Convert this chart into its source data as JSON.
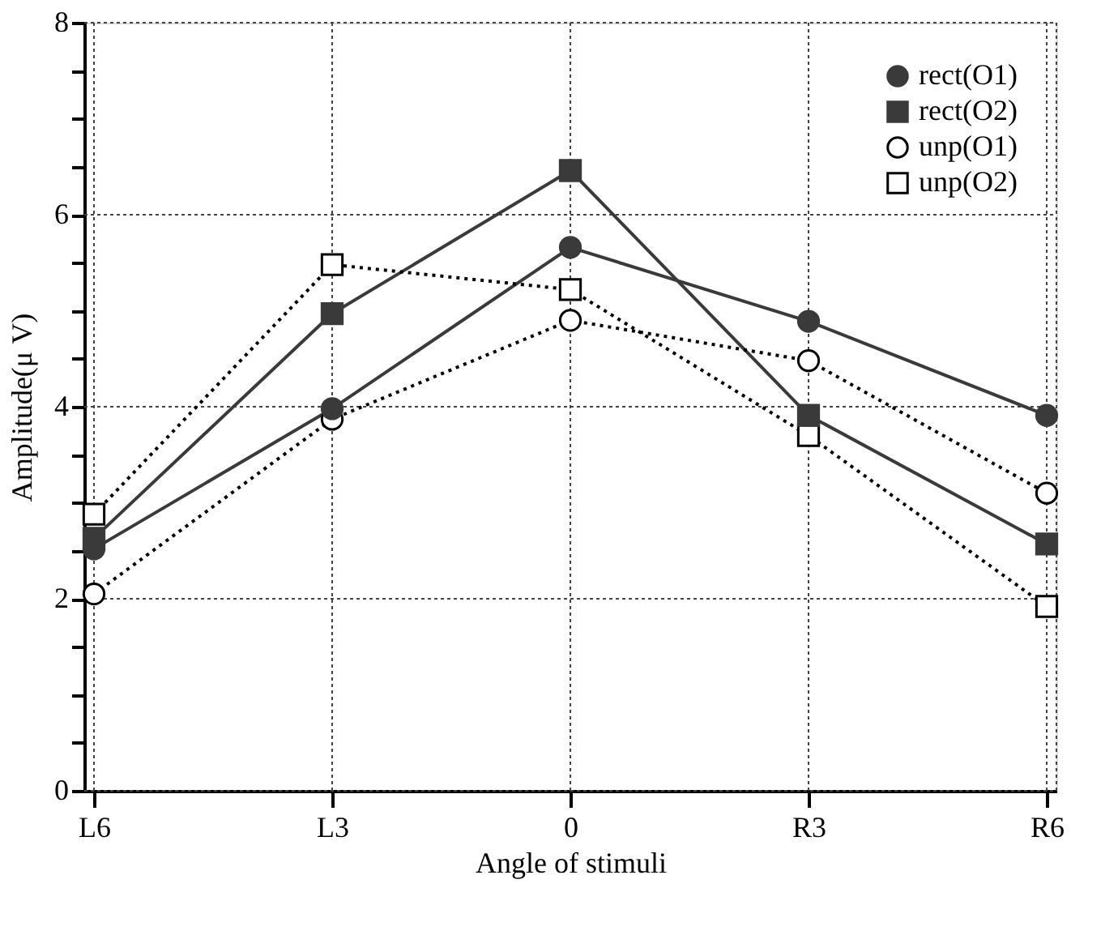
{
  "chart_data": {
    "type": "line",
    "xlabel": "Angle of stimuli",
    "ylabel": "Amplitude(μ V)",
    "categories": [
      "L6",
      "L3",
      "0",
      "R3",
      "R6"
    ],
    "series": [
      {
        "name": "rect(O1)",
        "color": "#3a3a3a",
        "marker": "circle",
        "line_style": "solid",
        "values": [
          2.52,
          3.98,
          5.66,
          4.89,
          3.91
        ]
      },
      {
        "name": "rect(O2)",
        "color": "#3a3a3a",
        "marker": "square",
        "line_style": "solid",
        "values": [
          2.63,
          4.97,
          6.46,
          3.91,
          2.57
        ]
      },
      {
        "name": "unp(O1)",
        "color": "#000000",
        "marker": "circle",
        "line_style": "dotted",
        "values": [
          2.05,
          3.87,
          4.9,
          4.48,
          3.1
        ]
      },
      {
        "name": "unp(O2)",
        "color": "#000000",
        "marker": "square",
        "line_style": "dotted",
        "values": [
          2.88,
          5.48,
          5.22,
          3.7,
          1.92
        ]
      }
    ],
    "ylim": [
      0,
      8
    ],
    "yticks": [
      0,
      {
        "value": 0.5,
        "label": null
      },
      {
        "value": 1,
        "label": null
      },
      {
        "value": 1.5,
        "label": null
      },
      2,
      {
        "value": 2.5,
        "label": null
      },
      {
        "value": 3,
        "label": null
      },
      {
        "value": 3.5,
        "label": null
      },
      4,
      {
        "value": 4.5,
        "label": null
      },
      {
        "value": 5,
        "label": null
      },
      {
        "value": 5.5,
        "label": null
      },
      6,
      {
        "value": 6.5,
        "label": null
      },
      {
        "value": 7,
        "label": null
      },
      {
        "value": 7.5,
        "label": null
      },
      8
    ],
    "grid": true,
    "legend": "top right"
  }
}
